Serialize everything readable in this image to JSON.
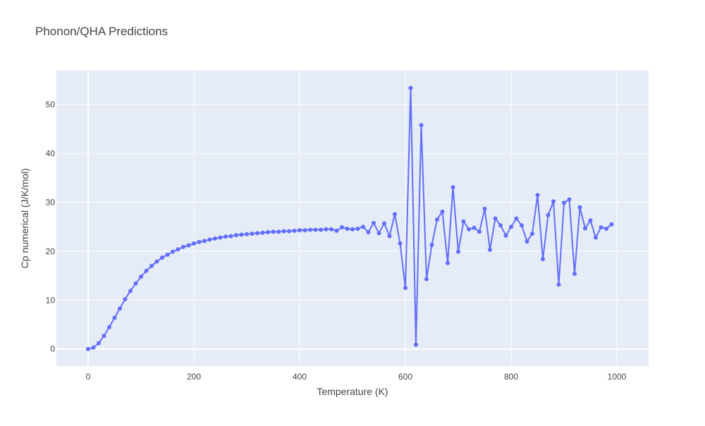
{
  "chart_data": {
    "type": "line",
    "title": "Phonon/QHA Predictions",
    "xlabel": "Temperature (K)",
    "ylabel": "Cp numerical (J/K/mol)",
    "xlim": [
      -60,
      1060
    ],
    "ylim": [
      -3.5,
      57
    ],
    "xticks": [
      0,
      200,
      400,
      600,
      800,
      1000
    ],
    "yticks": [
      0,
      10,
      20,
      30,
      40,
      50
    ],
    "grid": true,
    "legend": "none",
    "colors": {
      "plot_bg": "#e5ecf6",
      "grid": "#ffffff",
      "series": "#636efa"
    },
    "series": [
      {
        "x": [
          0,
          10,
          20,
          30,
          40,
          50,
          60,
          70,
          80,
          90,
          100,
          110,
          120,
          130,
          140,
          150,
          160,
          170,
          180,
          190,
          200,
          210,
          220,
          230,
          240,
          250,
          260,
          270,
          280,
          290,
          300,
          310,
          320,
          330,
          340,
          350,
          360,
          370,
          380,
          390,
          400,
          410,
          420,
          430,
          440,
          450,
          460,
          470,
          480,
          490,
          500,
          510,
          520,
          530,
          540,
          550,
          560,
          570,
          580,
          590,
          600,
          610,
          620,
          630,
          640,
          650,
          660,
          670,
          680,
          690,
          700,
          710,
          720,
          730,
          740,
          750,
          760,
          770,
          780,
          790,
          800,
          810,
          820,
          830,
          840,
          850,
          860,
          870,
          880,
          890,
          900,
          910,
          920,
          930,
          940,
          950,
          960,
          970,
          980,
          990
        ],
        "y": [
          0.0,
          0.3,
          1.2,
          2.7,
          4.5,
          6.4,
          8.3,
          10.2,
          11.9,
          13.4,
          14.8,
          16.0,
          17.0,
          17.9,
          18.7,
          19.3,
          19.9,
          20.4,
          20.9,
          21.2,
          21.6,
          21.9,
          22.1,
          22.4,
          22.6,
          22.8,
          23.0,
          23.1,
          23.3,
          23.4,
          23.5,
          23.6,
          23.7,
          23.8,
          23.9,
          24.0,
          24.0,
          24.1,
          24.1,
          24.2,
          24.3,
          24.3,
          24.4,
          24.4,
          24.4,
          24.5,
          24.5,
          24.2,
          24.9,
          24.6,
          24.5,
          24.6,
          25.0,
          23.9,
          25.8,
          23.7,
          25.7,
          23.1,
          27.6,
          21.6,
          12.5,
          53.4,
          0.9,
          45.8,
          14.3,
          21.3,
          26.5,
          28.1,
          17.6,
          33.1,
          19.9,
          26.1,
          24.5,
          24.8,
          24.0,
          28.7,
          20.3,
          26.7,
          25.3,
          23.2,
          25.0,
          26.7,
          25.3,
          22.0,
          23.6,
          31.5,
          18.4,
          27.4,
          30.2,
          13.2,
          29.9,
          30.6,
          15.4,
          29.0,
          24.7,
          26.3,
          22.8,
          24.9,
          24.6,
          25.5
        ]
      }
    ]
  }
}
